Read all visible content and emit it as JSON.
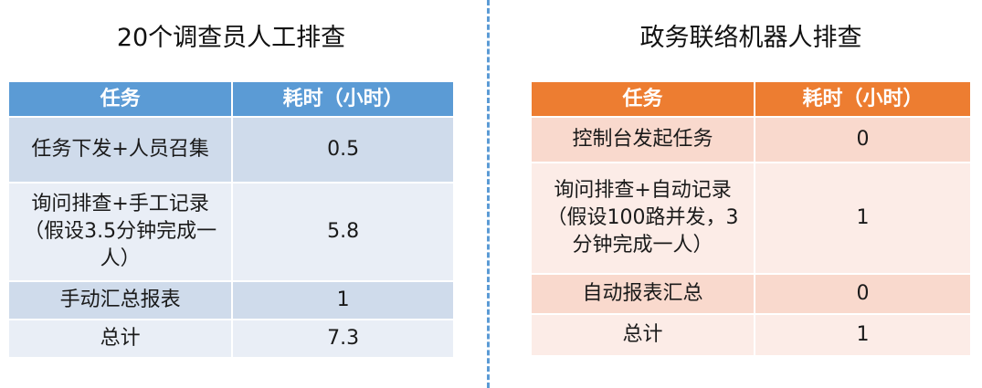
{
  "left": {
    "title": "20个调查员人工排查",
    "headers": [
      "任务",
      "耗时（小时）"
    ],
    "rows": [
      {
        "task": "任务下发+人员召集",
        "hours": "0.5"
      },
      {
        "task": "询问排查+手工记录（假设3.5分钟完成一人）",
        "hours": "5.8"
      },
      {
        "task": "手动汇总报表",
        "hours": "1"
      },
      {
        "task": "总计",
        "hours": "7.3"
      }
    ]
  },
  "right": {
    "title": "政务联络机器人排查",
    "headers": [
      "任务",
      "耗时（小时）"
    ],
    "rows": [
      {
        "task": "控制台发起任务",
        "hours": "0"
      },
      {
        "task": "询问排查+自动记录（假设100路并发，3分钟完成一人）",
        "hours": "1"
      },
      {
        "task": "自动报表汇总",
        "hours": "0"
      },
      {
        "task": "总计",
        "hours": "1"
      }
    ]
  },
  "colors": {
    "left_header": "#5b9bd5",
    "right_header": "#ed7d31",
    "divider": "#5b9bd5"
  }
}
